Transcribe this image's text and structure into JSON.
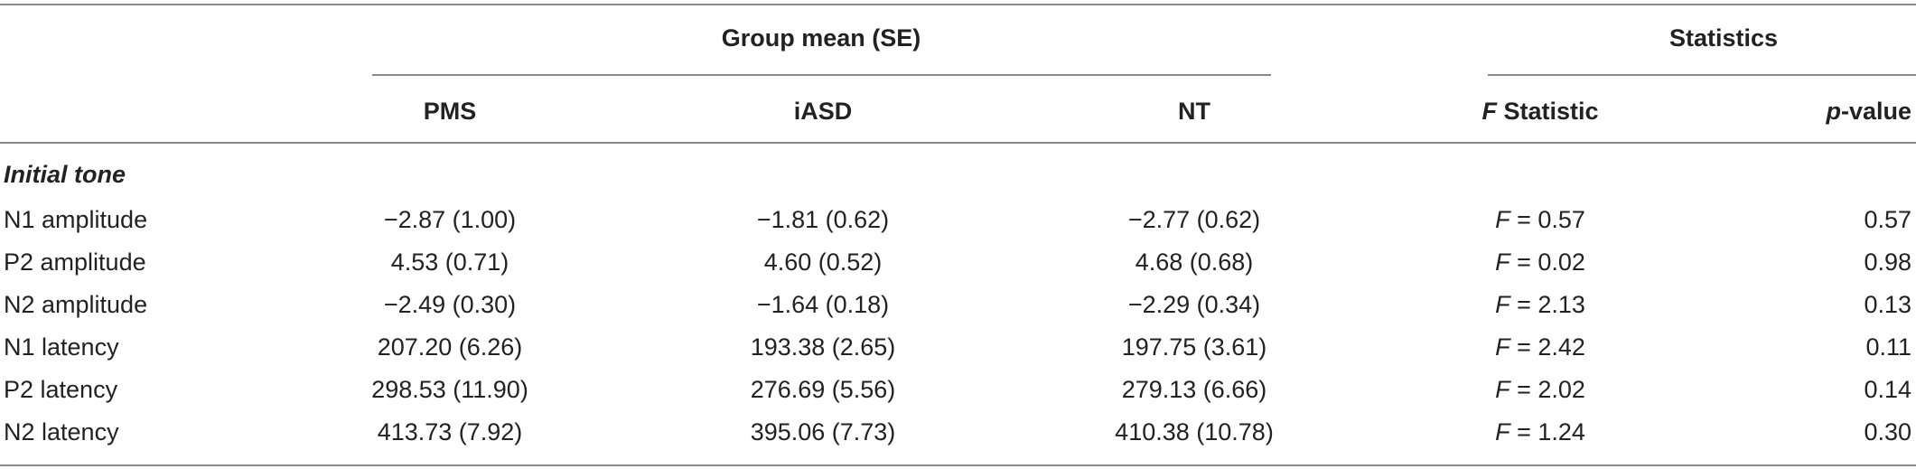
{
  "header": {
    "group_mean": "Group mean (SE)",
    "statistics": "Statistics",
    "columns": {
      "pms": "PMS",
      "iasd": "iASD",
      "nt": "NT",
      "f_italic": "F",
      "f_rest": " Statistic",
      "p_italic": "p",
      "p_rest": "-value"
    }
  },
  "section": {
    "label": "Initial tone"
  },
  "rows": [
    {
      "label": "N1 amplitude",
      "pms": "−2.87 (1.00)",
      "iasd": "−1.81 (0.62)",
      "nt": "−2.77 (0.62)",
      "f_var": "F",
      "f_val": " = 0.57",
      "p": "0.57"
    },
    {
      "label": "P2 amplitude",
      "pms": "4.53 (0.71)",
      "iasd": "4.60 (0.52)",
      "nt": "4.68 (0.68)",
      "f_var": "F",
      "f_val": " = 0.02",
      "p": "0.98"
    },
    {
      "label": "N2 amplitude",
      "pms": "−2.49 (0.30)",
      "iasd": "−1.64 (0.18)",
      "nt": "−2.29 (0.34)",
      "f_var": "F",
      "f_val": " = 2.13",
      "p": "0.13"
    },
    {
      "label": "N1 latency",
      "pms": "207.20 (6.26)",
      "iasd": "193.38 (2.65)",
      "nt": "197.75 (3.61)",
      "f_var": "F",
      "f_val": " = 2.42",
      "p": "0.11"
    },
    {
      "label": "P2 latency",
      "pms": "298.53 (11.90)",
      "iasd": "276.69 (5.56)",
      "nt": "279.13 (6.66)",
      "f_var": "F",
      "f_val": " = 2.02",
      "p": "0.14"
    },
    {
      "label": "N2 latency",
      "pms": "413.73 (7.92)",
      "iasd": "395.06 (7.73)",
      "nt": "410.38 (10.78)",
      "f_var": "F",
      "f_val": " = 1.24",
      "p": "0.30"
    }
  ]
}
